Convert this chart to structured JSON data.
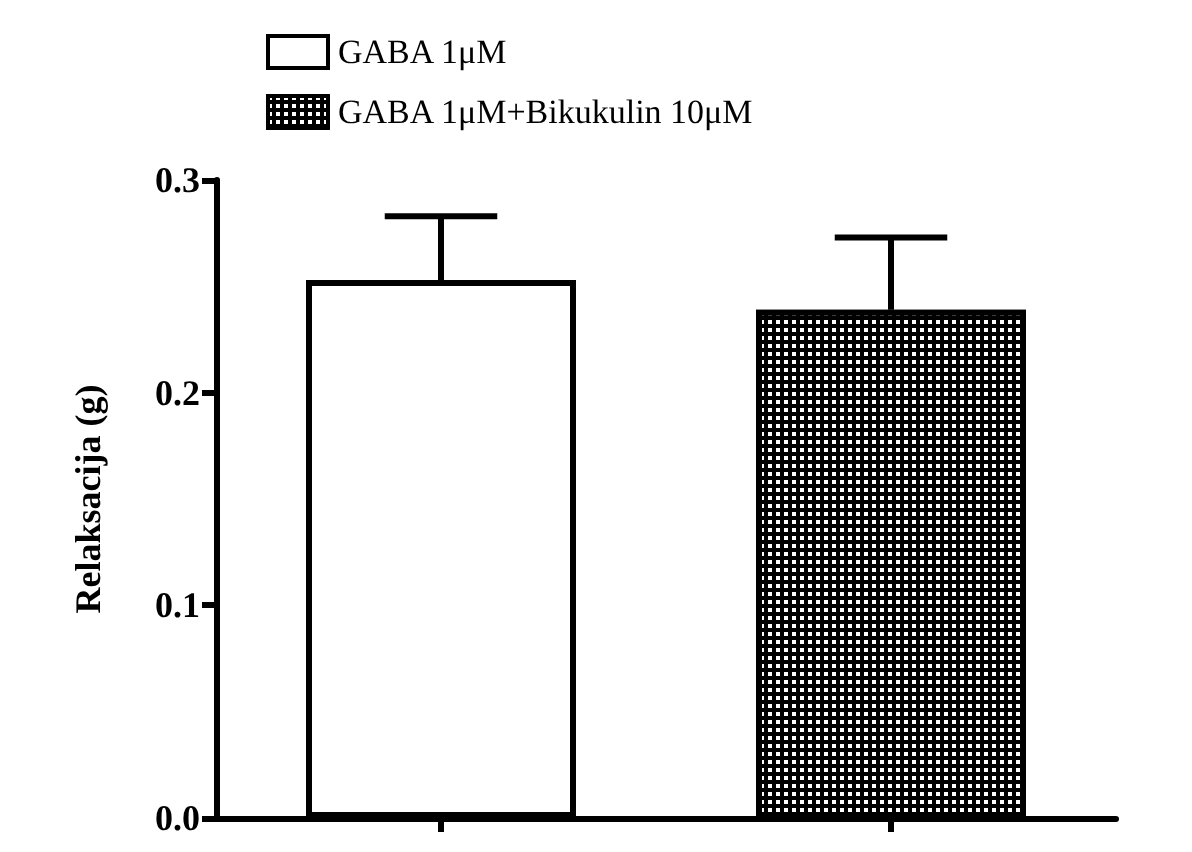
{
  "chart_data": {
    "type": "bar",
    "ylabel": "Relaksacija (g)",
    "categories": [
      null,
      null
    ],
    "series": [
      {
        "name": "GABA 1μM",
        "color": "#ffffff",
        "values": [
          0.253,
          null
        ],
        "errors": [
          [
            0.253,
            0.283
          ],
          null
        ]
      },
      {
        "name": "GABA 1μM+Bikukulin 10μM",
        "color": "#000000",
        "values": [
          null,
          0.239
        ],
        "errors": [
          null,
          [
            0.239,
            0.273
          ]
        ]
      }
    ],
    "ylim": [
      0,
      0.3
    ],
    "yticks": [
      {
        "value": 0,
        "label": "0.0"
      },
      {
        "value": 0.1,
        "label": "0.1"
      },
      {
        "value": 0.2,
        "label": "0.2"
      },
      {
        "value": 0.3,
        "label": "0.3"
      }
    ],
    "tick_labels": "y",
    "grid": false,
    "legend": "top"
  }
}
